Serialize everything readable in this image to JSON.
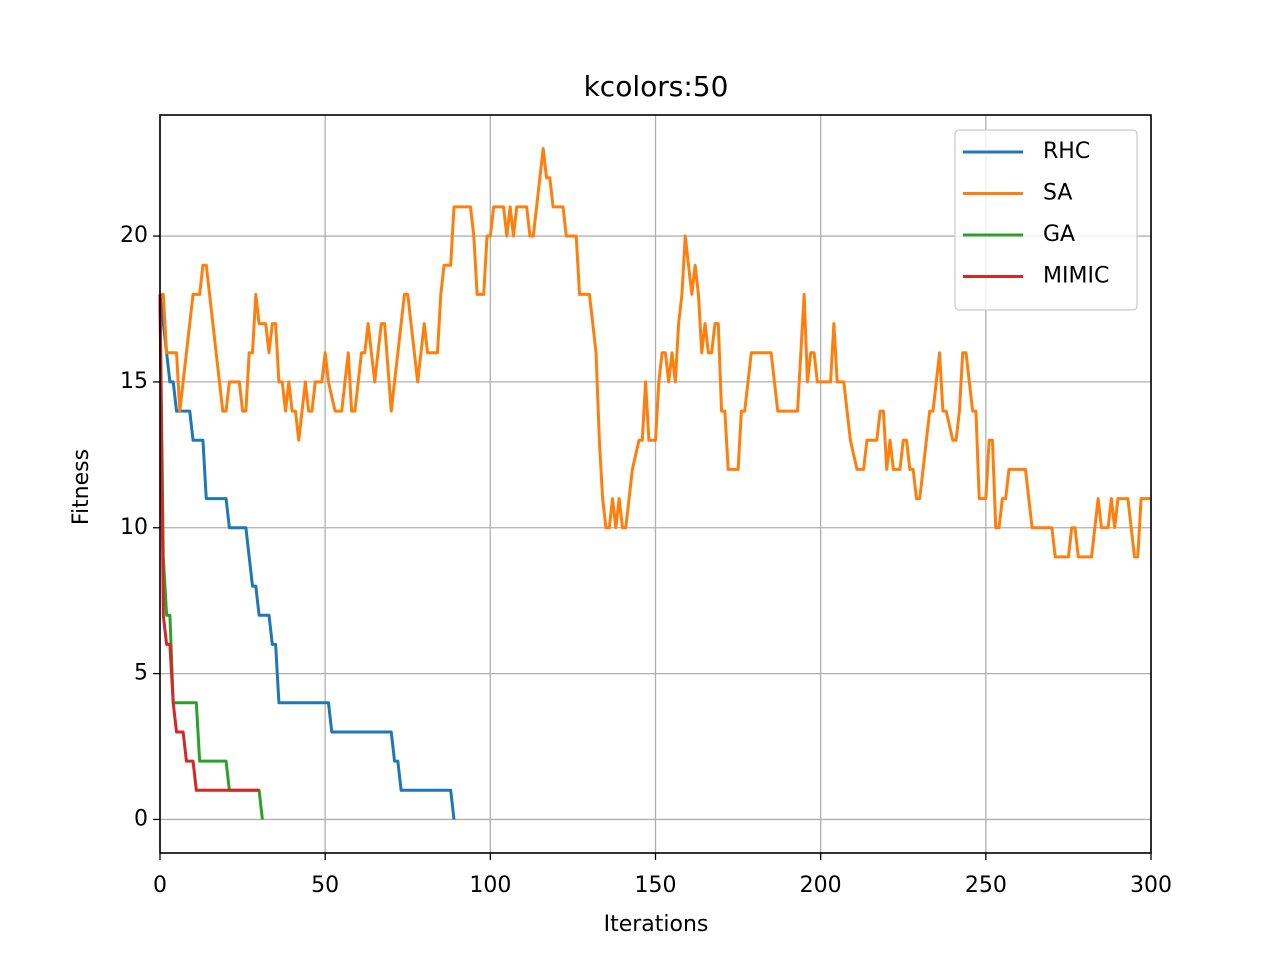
{
  "chart_data": {
    "type": "line",
    "title": "kcolors:50",
    "x_label": "Iterations",
    "y_label": "Fitness",
    "xlim": [
      0,
      300
    ],
    "ylim": [
      -1.15,
      24.15
    ],
    "xticks": [
      0,
      50,
      100,
      150,
      200,
      250,
      300
    ],
    "yticks": [
      0,
      5,
      10,
      15,
      20
    ],
    "grid": true,
    "legend": "upper right",
    "series": [
      {
        "name": "RHC",
        "color": "#1f77b4",
        "x": [
          0,
          1,
          2,
          3,
          4,
          5,
          9,
          10,
          13,
          14,
          20,
          21,
          26,
          27,
          28,
          29,
          30,
          33,
          34,
          35,
          36,
          51,
          52,
          70,
          71,
          72,
          73,
          88,
          89
        ],
        "values": [
          18,
          17,
          16,
          15,
          15,
          14,
          14,
          13,
          13,
          11,
          11,
          10,
          10,
          9,
          8,
          8,
          7,
          7,
          6,
          6,
          4,
          4,
          3,
          3,
          2,
          2,
          1,
          1,
          0
        ]
      },
      {
        "name": "SA",
        "color": "#ff7f0e",
        "x": [
          0,
          1,
          2,
          4,
          5,
          6,
          7,
          10,
          12,
          13,
          14,
          19,
          20,
          21,
          24,
          25,
          26,
          27,
          28,
          29,
          30,
          32,
          33,
          34,
          35,
          36,
          37,
          38,
          39,
          40,
          41,
          42,
          44,
          45,
          46,
          47,
          49,
          50,
          51,
          53,
          55,
          57,
          58,
          59,
          61,
          62,
          63,
          64,
          65,
          67,
          68,
          70,
          74,
          75,
          78,
          80,
          81,
          84,
          85,
          86,
          88,
          89,
          94,
          95,
          96,
          98,
          99,
          100,
          101,
          104,
          105,
          106,
          107,
          108,
          111,
          112,
          113,
          116,
          117,
          118,
          119,
          122,
          123,
          126,
          127,
          130,
          132,
          133,
          134,
          135,
          136,
          137,
          138,
          139,
          140,
          141,
          143,
          145,
          146,
          147,
          148,
          150,
          151,
          152,
          153,
          154,
          155,
          156,
          157,
          158,
          159,
          160,
          161,
          162,
          163,
          164,
          165,
          166,
          167,
          168,
          169,
          170,
          171,
          172,
          175,
          176,
          177,
          179,
          185,
          187,
          193,
          195,
          196,
          197,
          198,
          199,
          203,
          204,
          205,
          207,
          209,
          211,
          213,
          214,
          217,
          218,
          219,
          220,
          221,
          222,
          224,
          225,
          226,
          227,
          228,
          229,
          230,
          233,
          234,
          235,
          236,
          237,
          238,
          240,
          241,
          242,
          243,
          244,
          246,
          247,
          248,
          250,
          251,
          252,
          253,
          254,
          255,
          256,
          257,
          262,
          264,
          270,
          271,
          275,
          276,
          277,
          278,
          282,
          284,
          285,
          287,
          288,
          289,
          290,
          293,
          294,
          295,
          296,
          297,
          300
        ],
        "values": [
          18,
          18,
          16,
          16,
          16,
          14,
          15,
          18,
          18,
          19,
          19,
          14,
          14,
          15,
          15,
          14,
          14,
          16,
          16,
          18,
          17,
          17,
          16,
          17,
          17,
          15,
          15,
          14,
          15,
          14,
          14,
          13,
          15,
          14,
          14,
          15,
          15,
          16,
          15,
          14,
          14,
          16,
          14,
          14,
          16,
          16,
          17,
          16,
          15,
          17,
          17,
          14,
          18,
          18,
          15,
          17,
          16,
          16,
          18,
          19,
          19,
          21,
          21,
          20,
          18,
          18,
          20,
          20,
          21,
          21,
          20,
          21,
          20,
          21,
          21,
          20,
          20,
          23,
          22,
          22,
          21,
          21,
          20,
          20,
          18,
          18,
          16,
          13,
          11,
          10,
          10,
          11,
          10,
          11,
          10,
          10,
          12,
          13,
          13,
          15,
          13,
          13,
          15,
          16,
          16,
          15,
          16,
          15,
          17,
          18,
          20,
          19,
          18,
          19,
          18,
          16,
          17,
          16,
          16,
          17,
          17,
          14,
          14,
          12,
          12,
          14,
          14,
          16,
          16,
          14,
          14,
          18,
          15,
          16,
          16,
          15,
          15,
          17,
          15,
          15,
          13,
          12,
          12,
          13,
          13,
          14,
          14,
          12,
          13,
          12,
          12,
          13,
          13,
          12,
          12,
          11,
          11,
          14,
          14,
          15,
          16,
          14,
          14,
          13,
          13,
          14,
          16,
          16,
          14,
          14,
          11,
          11,
          13,
          13,
          10,
          10,
          11,
          11,
          12,
          12,
          10,
          10,
          9,
          9,
          10,
          10,
          9,
          9,
          11,
          10,
          10,
          11,
          10,
          11,
          11,
          10,
          9,
          9,
          11,
          11
        ]
      },
      {
        "name": "GA",
        "color": "#2ca02c",
        "x": [
          0,
          1,
          2,
          3,
          4,
          11,
          12,
          20,
          21,
          30,
          31
        ],
        "values": [
          18,
          9,
          7,
          7,
          4,
          4,
          2,
          2,
          1,
          1,
          0
        ]
      },
      {
        "name": "MIMIC",
        "color": "#d62728",
        "x": [
          0,
          1,
          2,
          3,
          4,
          5,
          7,
          8,
          10,
          11,
          30
        ],
        "values": [
          18,
          7,
          6,
          6,
          4,
          3,
          3,
          2,
          2,
          1,
          1
        ]
      }
    ]
  }
}
